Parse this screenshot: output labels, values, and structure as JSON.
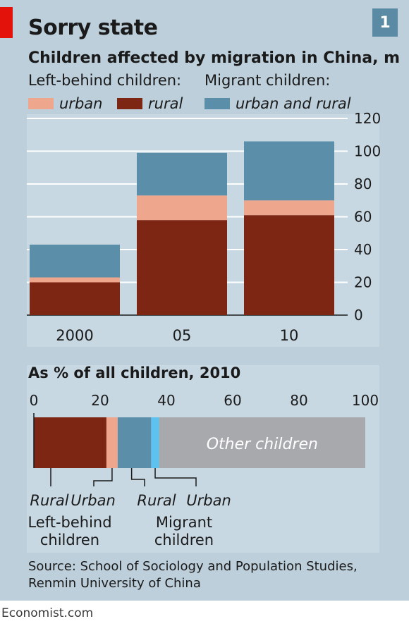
{
  "header": {
    "title": "Sorry state",
    "badge": "1",
    "subtitle": "Children affected by migration in China, m"
  },
  "legend": {
    "left_behind_label": "Left-behind children:",
    "migrant_label": "Migrant children:",
    "items": [
      {
        "label": "urban",
        "color": "#eea68d"
      },
      {
        "label": "rural",
        "color": "#7e2614"
      },
      {
        "label": "urban and rural",
        "color": "#5b8ea8"
      }
    ]
  },
  "chart_data": [
    {
      "type": "bar",
      "stacked": true,
      "title": "Children affected by migration in China, m",
      "categories": [
        "2000",
        "05",
        "10"
      ],
      "series": [
        {
          "name": "rural",
          "values": [
            20,
            58,
            61
          ],
          "color": "#7e2614"
        },
        {
          "name": "urban",
          "values": [
            3,
            15,
            9
          ],
          "color": "#eea68d"
        },
        {
          "name": "urban and rural",
          "values": [
            20,
            26,
            36
          ],
          "color": "#5b8ea8"
        }
      ],
      "ylim": [
        0,
        120
      ],
      "yticks": [
        0,
        20,
        40,
        60,
        80,
        100,
        120
      ],
      "grid": true,
      "axis_side": "right"
    },
    {
      "type": "bar",
      "stacked": true,
      "orientation": "horizontal",
      "title": "As % of all children, 2010",
      "xlim": [
        0,
        100
      ],
      "xticks": [
        0,
        20,
        40,
        60,
        80,
        100
      ],
      "segments": [
        {
          "label": "Rural",
          "value": 21.9,
          "color": "#7e2614"
        },
        {
          "label": "Urban",
          "value": 3.4,
          "color": "#eea68d"
        },
        {
          "label": "Rural",
          "value": 10.1,
          "color": "#5b8ea8"
        },
        {
          "label": "Urban",
          "value": 2.4,
          "color": "#5ec2f0"
        },
        {
          "label": "Other children",
          "value": 62.2,
          "color": "#a7a9ac"
        }
      ],
      "group_labels": [
        {
          "line1": "Left-behind",
          "line2": "children"
        },
        {
          "line1": "Migrant",
          "line2": "children"
        }
      ]
    }
  ],
  "source": "Source: School of Sociology and Population Studies, Renmin University of China",
  "footer": "Economist.com"
}
